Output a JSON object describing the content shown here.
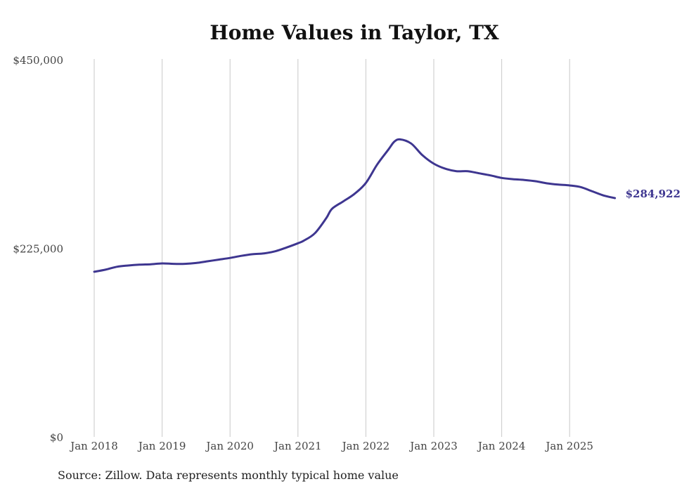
{
  "chart_data": {
    "type": "line",
    "title": "Home Values in Taylor, TX",
    "source": "Source: Zillow. Data represents monthly typical home value",
    "x_ticks": [
      "Jan 2018",
      "Jan 2019",
      "Jan 2020",
      "Jan 2021",
      "Jan 2022",
      "Jan 2023",
      "Jan 2024",
      "Jan 2025"
    ],
    "y_ticks": [
      "$0",
      "$225,000",
      "$450,000"
    ],
    "y_tick_values": [
      0,
      225000,
      450000
    ],
    "ylim": [
      0,
      450000
    ],
    "xlim": [
      "2018-01",
      "2025-09"
    ],
    "grid": "vertical",
    "line_color": "#3e3690",
    "end_label": "$284,922",
    "series": [
      {
        "x": [
          "2018-01",
          "2018-03",
          "2018-05",
          "2018-07",
          "2018-09",
          "2018-11",
          "2019-01",
          "2019-03",
          "2019-05",
          "2019-07",
          "2019-09",
          "2019-11",
          "2020-01",
          "2020-03",
          "2020-05",
          "2020-07",
          "2020-09",
          "2020-11",
          "2021-01",
          "2021-02",
          "2021-04",
          "2021-06",
          "2021-07",
          "2021-09",
          "2021-11",
          "2022-01",
          "2022-03",
          "2022-05",
          "2022-06",
          "2022-07",
          "2022-09",
          "2022-11",
          "2023-01",
          "2023-03",
          "2023-05",
          "2023-07",
          "2023-09",
          "2023-11",
          "2024-01",
          "2024-03",
          "2024-05",
          "2024-07",
          "2024-09",
          "2024-11",
          "2025-01",
          "2025-03",
          "2025-05",
          "2025-07",
          "2025-09"
        ],
        "values": [
          197000,
          199500,
          203000,
          204500,
          205500,
          206000,
          207000,
          206500,
          206500,
          207500,
          209500,
          211500,
          213500,
          216000,
          218000,
          219000,
          221500,
          226000,
          231000,
          234000,
          243000,
          261000,
          272000,
          281000,
          290000,
          303000,
          325000,
          343000,
          352000,
          355000,
          350000,
          336000,
          326000,
          320000,
          317000,
          317000,
          314500,
          312000,
          309000,
          307500,
          306500,
          305000,
          302500,
          301000,
          300000,
          298000,
          293000,
          288000,
          284922
        ]
      }
    ]
  }
}
